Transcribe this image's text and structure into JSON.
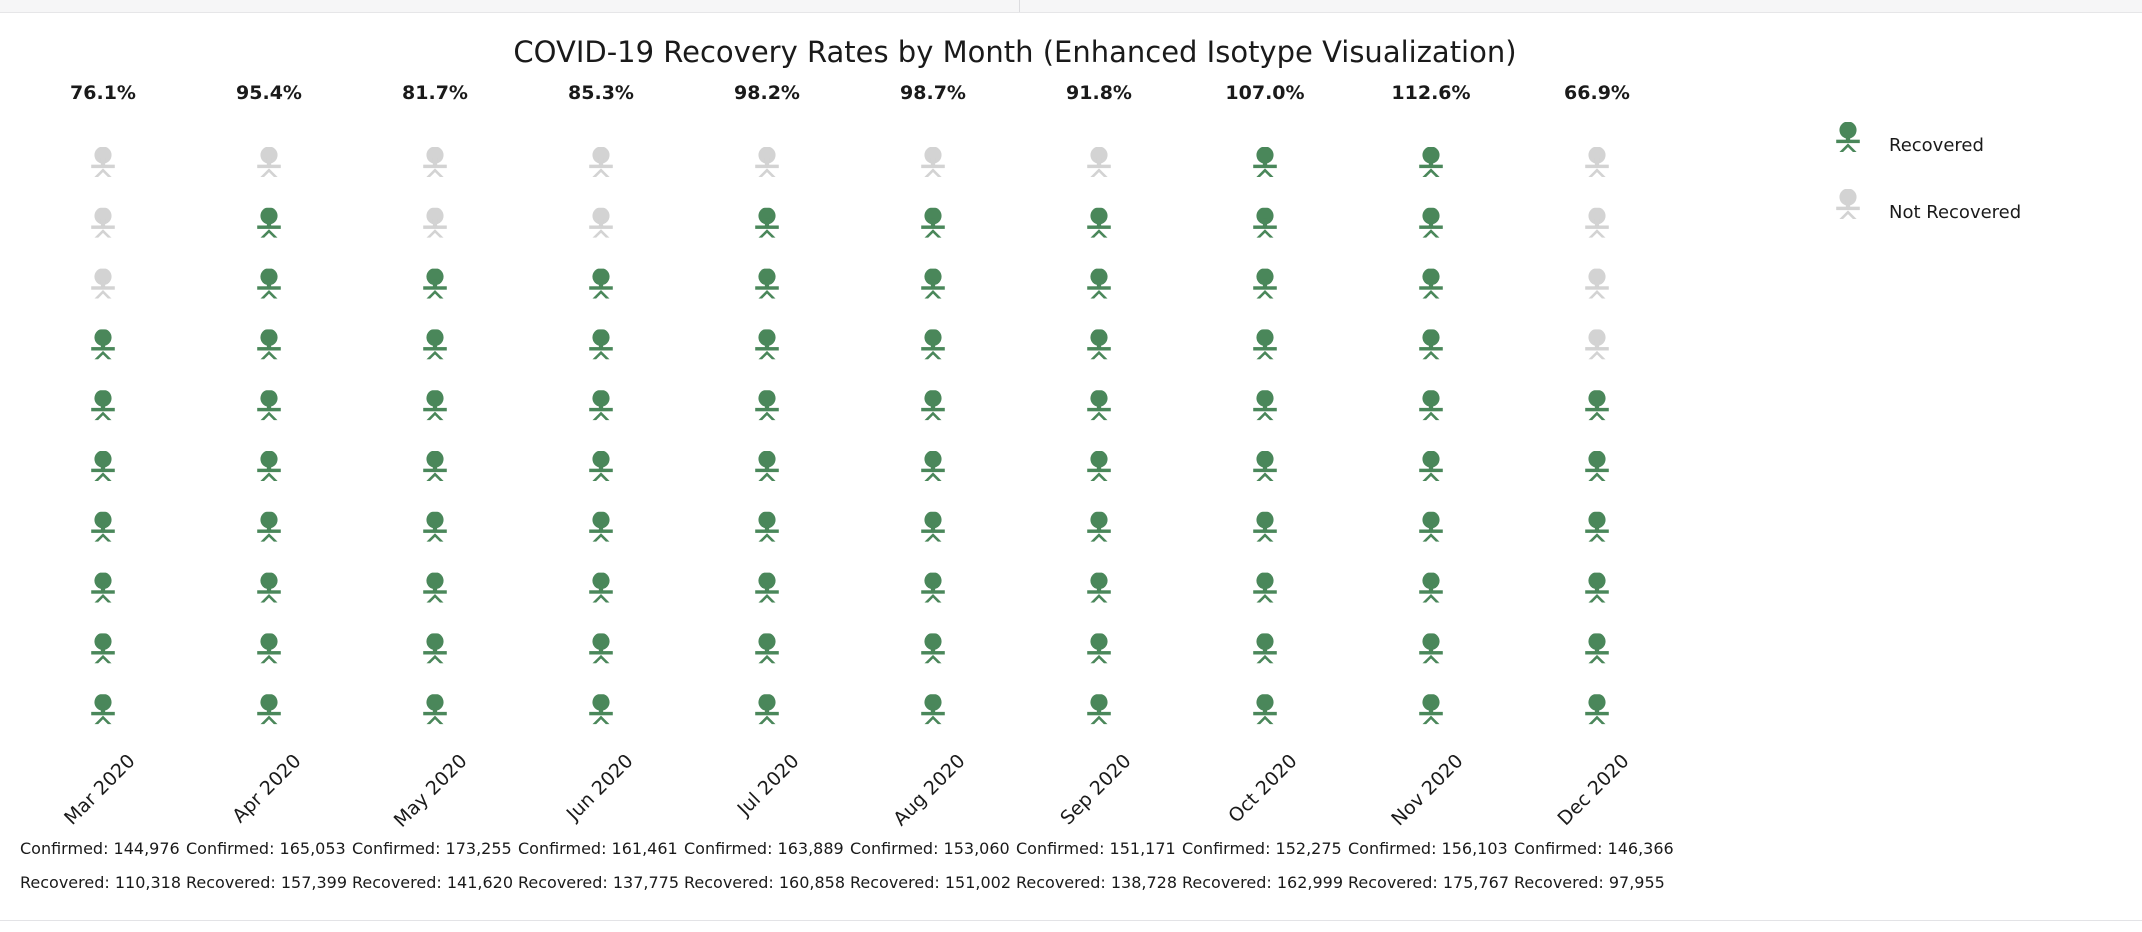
{
  "chart_data": {
    "type": "isotype",
    "title": "COVID-19 Recovery Rates by Month (Enhanced Isotype Visualization)",
    "icons_per_column": 10,
    "colors": {
      "recovered": "#4a875a",
      "not_recovered": "#d3d3d3",
      "text": "#1a1a1a"
    },
    "legend": {
      "placement": "top-right",
      "entries": [
        {
          "key": "recovered",
          "label": "Recovered"
        },
        {
          "key": "not_recovered",
          "label": "Not Recovered"
        }
      ]
    },
    "months": [
      {
        "label": "Mar 2020",
        "rate": "76.1%",
        "icons_recovered": 7,
        "confirmed": "Confirmed: 144,976",
        "recovered": "Recovered: 110,318"
      },
      {
        "label": "Apr 2020",
        "rate": "95.4%",
        "icons_recovered": 9,
        "confirmed": "Confirmed: 165,053",
        "recovered": "Recovered: 157,399"
      },
      {
        "label": "May 2020",
        "rate": "81.7%",
        "icons_recovered": 8,
        "confirmed": "Confirmed: 173,255",
        "recovered": "Recovered: 141,620"
      },
      {
        "label": "Jun 2020",
        "rate": "85.3%",
        "icons_recovered": 8,
        "confirmed": "Confirmed: 161,461",
        "recovered": "Recovered: 137,775"
      },
      {
        "label": "Jul 2020",
        "rate": "98.2%",
        "icons_recovered": 9,
        "confirmed": "Confirmed: 163,889",
        "recovered": "Recovered: 160,858"
      },
      {
        "label": "Aug 2020",
        "rate": "98.7%",
        "icons_recovered": 9,
        "confirmed": "Confirmed: 153,060",
        "recovered": "Recovered: 151,002"
      },
      {
        "label": "Sep 2020",
        "rate": "91.8%",
        "icons_recovered": 9,
        "confirmed": "Confirmed: 151,171",
        "recovered": "Recovered: 138,728"
      },
      {
        "label": "Oct 2020",
        "rate": "107.0%",
        "icons_recovered": 10,
        "confirmed": "Confirmed: 152,275",
        "recovered": "Recovered: 162,999"
      },
      {
        "label": "Nov 2020",
        "rate": "112.6%",
        "icons_recovered": 10,
        "confirmed": "Confirmed: 156,103",
        "recovered": "Recovered: 175,767"
      },
      {
        "label": "Dec 2020",
        "rate": "66.9%",
        "icons_recovered": 6,
        "confirmed": "Confirmed: 146,366",
        "recovered": "Recovered: 97,955"
      }
    ]
  }
}
